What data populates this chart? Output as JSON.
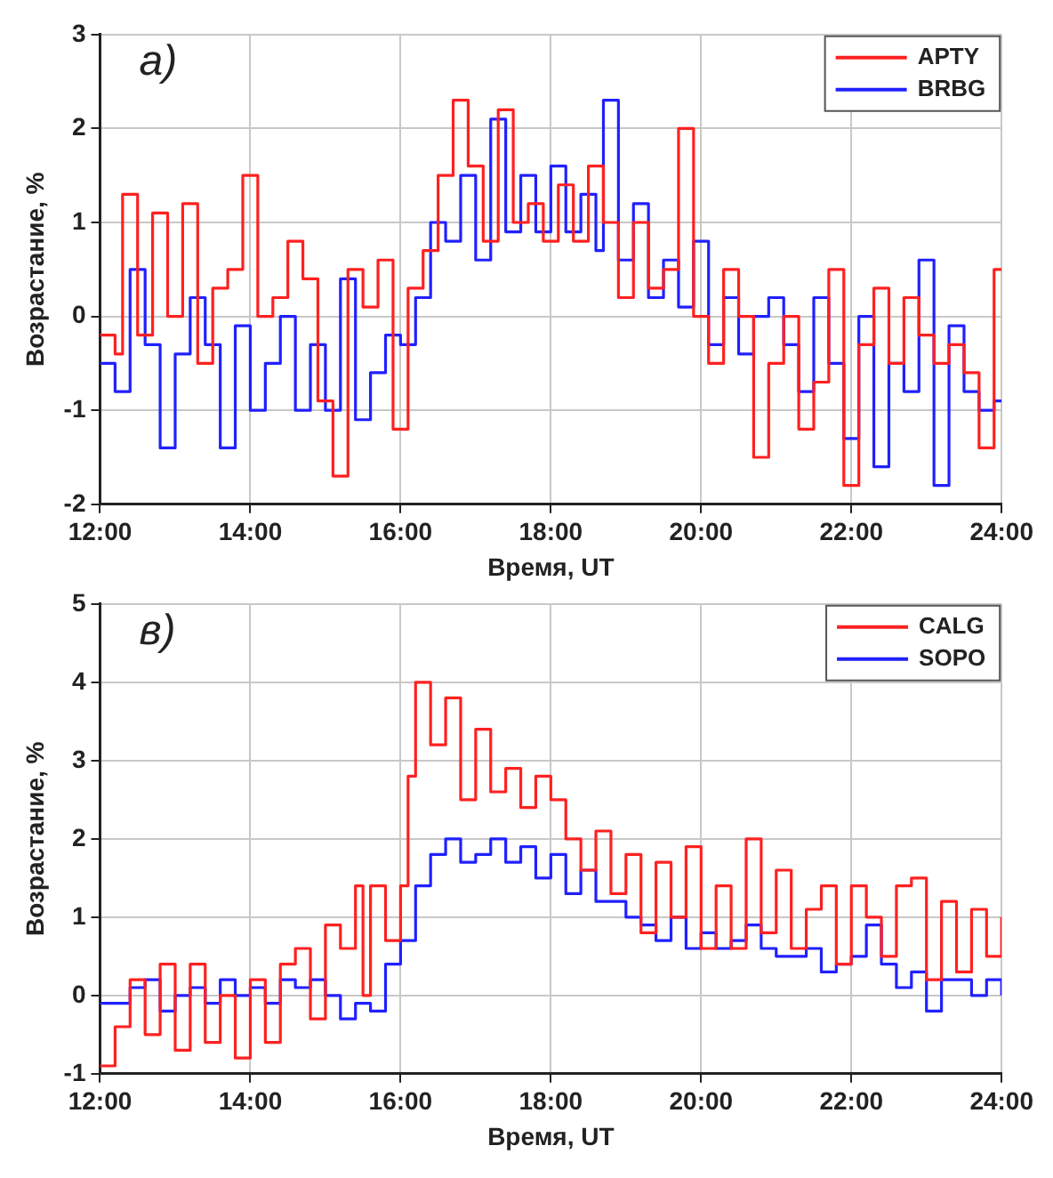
{
  "chart_data": [
    {
      "type": "step",
      "annotations": [
        "а)"
      ],
      "xlabel": "Время, UT",
      "ylabel": "Возрастание, %",
      "xlim": [
        12,
        24
      ],
      "xticks": [
        {
          "value": 12,
          "label": "12:00"
        },
        {
          "value": 14,
          "label": "14:00"
        },
        {
          "value": 16,
          "label": "16:00"
        },
        {
          "value": 18,
          "label": "18:00"
        },
        {
          "value": 20,
          "label": "20:00"
        },
        {
          "value": 22,
          "label": "22:00"
        },
        {
          "value": 24,
          "label": "24:00"
        }
      ],
      "ylim": [
        -2,
        3
      ],
      "yticks": [
        -2,
        -1,
        0,
        1,
        2,
        3
      ],
      "grid": true,
      "legend": "top right",
      "line_style": "solid",
      "marker": "none",
      "series": [
        {
          "name": "APTY",
          "color": "#ff2020",
          "x": [
            12.0,
            12.2,
            12.3,
            12.5,
            12.7,
            12.9,
            13.1,
            13.3,
            13.5,
            13.7,
            13.9,
            14.1,
            14.3,
            14.5,
            14.7,
            14.9,
            15.1,
            15.3,
            15.5,
            15.7,
            15.9,
            16.1,
            16.3,
            16.5,
            16.7,
            16.9,
            17.1,
            17.3,
            17.5,
            17.7,
            17.9,
            18.1,
            18.3,
            18.5,
            18.7,
            18.9,
            19.1,
            19.3,
            19.5,
            19.7,
            19.9,
            20.1,
            20.3,
            20.5,
            20.7,
            20.9,
            21.1,
            21.3,
            21.5,
            21.7,
            21.9,
            22.1,
            22.3,
            22.5,
            22.7,
            22.9,
            23.1,
            23.3,
            23.5,
            23.7,
            23.9,
            24.0
          ],
          "values": [
            -0.2,
            -0.4,
            1.3,
            -0.2,
            1.1,
            0.0,
            1.2,
            -0.5,
            0.3,
            0.5,
            1.5,
            0.0,
            0.2,
            0.8,
            0.4,
            -0.9,
            -1.7,
            0.5,
            0.1,
            0.6,
            -1.2,
            0.3,
            0.7,
            1.5,
            2.3,
            1.6,
            0.8,
            2.2,
            1.0,
            1.2,
            0.8,
            1.4,
            0.8,
            1.6,
            1.0,
            0.2,
            1.0,
            0.3,
            0.5,
            2.0,
            0.0,
            -0.5,
            0.5,
            0.0,
            -1.5,
            -0.5,
            0.0,
            -1.2,
            -0.7,
            0.5,
            -1.8,
            -0.3,
            0.3,
            -0.5,
            0.2,
            -0.2,
            -0.5,
            -0.3,
            -0.6,
            -1.4,
            0.5,
            0.5
          ]
        },
        {
          "name": "BRBG",
          "color": "#2020ff",
          "x": [
            12.0,
            12.2,
            12.4,
            12.6,
            12.8,
            13.0,
            13.2,
            13.4,
            13.6,
            13.8,
            14.0,
            14.2,
            14.4,
            14.6,
            14.8,
            15.0,
            15.2,
            15.4,
            15.6,
            15.8,
            16.0,
            16.2,
            16.4,
            16.6,
            16.8,
            17.0,
            17.2,
            17.4,
            17.6,
            17.8,
            18.0,
            18.2,
            18.4,
            18.6,
            18.7,
            18.9,
            19.1,
            19.3,
            19.5,
            19.7,
            19.9,
            20.1,
            20.3,
            20.5,
            20.7,
            20.9,
            21.1,
            21.3,
            21.5,
            21.7,
            21.9,
            22.1,
            22.3,
            22.5,
            22.7,
            22.9,
            23.1,
            23.3,
            23.5,
            23.7,
            23.9,
            24.0
          ],
          "values": [
            -0.5,
            -0.8,
            0.5,
            -0.3,
            -1.4,
            -0.4,
            0.2,
            -0.3,
            -1.4,
            -0.1,
            -1.0,
            -0.5,
            0.0,
            -1.0,
            -0.3,
            -1.0,
            0.4,
            -1.1,
            -0.6,
            -0.2,
            -0.3,
            0.2,
            1.0,
            0.8,
            1.5,
            0.6,
            2.1,
            0.9,
            1.5,
            0.9,
            1.6,
            0.9,
            1.3,
            0.7,
            2.3,
            0.6,
            1.2,
            0.2,
            0.6,
            0.1,
            0.8,
            -0.3,
            0.2,
            -0.4,
            0.0,
            0.2,
            -0.3,
            -0.8,
            0.2,
            -0.5,
            -1.3,
            0.0,
            -1.6,
            -0.5,
            -0.8,
            0.6,
            -1.8,
            -0.1,
            -0.8,
            -1.0,
            -0.9,
            -0.9
          ]
        }
      ]
    },
    {
      "type": "step",
      "annotations": [
        "в)"
      ],
      "xlabel": "Время, UT",
      "ylabel": "Возрастание, %",
      "xlim": [
        12,
        24
      ],
      "xticks": [
        {
          "value": 12,
          "label": "12:00"
        },
        {
          "value": 14,
          "label": "14:00"
        },
        {
          "value": 16,
          "label": "16:00"
        },
        {
          "value": 18,
          "label": "18:00"
        },
        {
          "value": 20,
          "label": "20:00"
        },
        {
          "value": 22,
          "label": "22:00"
        },
        {
          "value": 24,
          "label": "24:00"
        }
      ],
      "ylim": [
        -1,
        5
      ],
      "yticks": [
        -1,
        0,
        1,
        2,
        3,
        4,
        5
      ],
      "grid": true,
      "legend": "top right",
      "line_style": "solid",
      "marker": "none",
      "series": [
        {
          "name": "CALG",
          "color": "#ff2020",
          "x": [
            12.0,
            12.2,
            12.4,
            12.6,
            12.8,
            13.0,
            13.2,
            13.4,
            13.6,
            13.8,
            14.0,
            14.2,
            14.4,
            14.6,
            14.8,
            15.0,
            15.2,
            15.4,
            15.5,
            15.6,
            15.8,
            16.0,
            16.1,
            16.2,
            16.4,
            16.6,
            16.8,
            17.0,
            17.2,
            17.4,
            17.6,
            17.8,
            18.0,
            18.2,
            18.4,
            18.6,
            18.8,
            19.0,
            19.2,
            19.4,
            19.6,
            19.8,
            20.0,
            20.2,
            20.4,
            20.6,
            20.8,
            21.0,
            21.2,
            21.4,
            21.6,
            21.8,
            22.0,
            22.2,
            22.4,
            22.6,
            22.8,
            23.0,
            23.2,
            23.4,
            23.6,
            23.8,
            24.0
          ],
          "values": [
            -0.9,
            -0.4,
            0.2,
            -0.5,
            0.4,
            -0.7,
            0.4,
            -0.6,
            0.0,
            -0.8,
            0.2,
            -0.6,
            0.4,
            0.6,
            -0.3,
            0.9,
            0.6,
            1.4,
            0.0,
            1.4,
            0.7,
            1.4,
            2.8,
            4.0,
            3.2,
            3.8,
            2.5,
            3.4,
            2.6,
            2.9,
            2.4,
            2.8,
            2.5,
            2.0,
            1.6,
            2.1,
            1.3,
            1.8,
            0.8,
            1.7,
            1.0,
            1.9,
            0.6,
            1.4,
            0.6,
            2.0,
            0.8,
            1.6,
            0.6,
            1.1,
            1.4,
            0.4,
            1.4,
            1.0,
            0.5,
            1.4,
            1.5,
            0.2,
            1.2,
            0.3,
            1.1,
            0.5,
            1.0
          ]
        },
        {
          "name": "SOPO",
          "color": "#2020ff",
          "x": [
            12.0,
            12.2,
            12.4,
            12.6,
            12.8,
            13.0,
            13.2,
            13.4,
            13.6,
            13.8,
            14.0,
            14.2,
            14.4,
            14.6,
            14.8,
            15.0,
            15.2,
            15.4,
            15.6,
            15.8,
            16.0,
            16.2,
            16.4,
            16.6,
            16.8,
            17.0,
            17.2,
            17.4,
            17.6,
            17.8,
            18.0,
            18.2,
            18.4,
            18.6,
            18.8,
            19.0,
            19.2,
            19.4,
            19.6,
            19.8,
            20.0,
            20.2,
            20.4,
            20.6,
            20.8,
            21.0,
            21.2,
            21.4,
            21.6,
            21.8,
            22.0,
            22.2,
            22.4,
            22.6,
            22.8,
            23.0,
            23.2,
            23.4,
            23.6,
            23.8,
            24.0
          ],
          "values": [
            -0.1,
            -0.1,
            0.1,
            0.2,
            -0.2,
            0.0,
            0.1,
            -0.1,
            0.2,
            0.0,
            0.1,
            -0.1,
            0.2,
            0.1,
            0.2,
            0.0,
            -0.3,
            -0.1,
            -0.2,
            0.4,
            0.7,
            1.4,
            1.8,
            2.0,
            1.7,
            1.8,
            2.0,
            1.7,
            1.9,
            1.5,
            1.8,
            1.3,
            1.6,
            1.2,
            1.2,
            1.0,
            0.9,
            0.7,
            1.0,
            0.6,
            0.8,
            0.6,
            0.7,
            0.9,
            0.6,
            0.5,
            0.5,
            0.6,
            0.3,
            0.4,
            0.5,
            0.9,
            0.4,
            0.1,
            0.3,
            -0.2,
            0.2,
            0.2,
            0.0,
            0.2,
            0.0
          ]
        }
      ]
    }
  ]
}
